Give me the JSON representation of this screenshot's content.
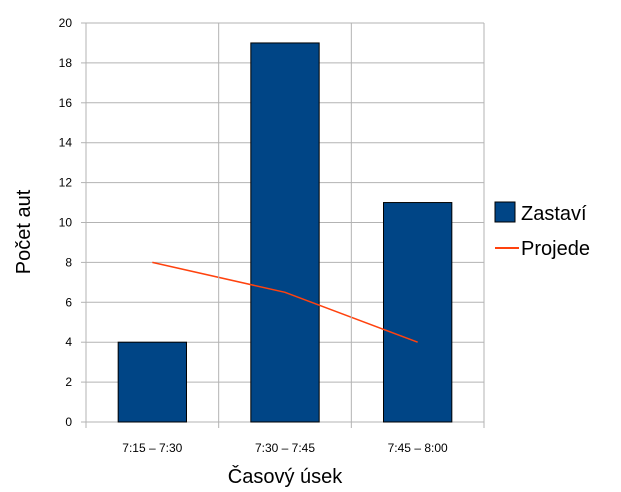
{
  "chart_data": {
    "type": "bar",
    "categories": [
      "7:15 – 7:30",
      "7:30 – 7:45",
      "7:45 – 8:00"
    ],
    "series": [
      {
        "name": "Zastaví",
        "type": "bar",
        "color": "#004586",
        "values": [
          4,
          19,
          11
        ]
      },
      {
        "name": "Projede",
        "type": "line",
        "color": "#ff420e",
        "values": [
          8,
          6.5,
          4
        ]
      }
    ],
    "xlabel": "Časový úsek",
    "ylabel": "Počet aut",
    "ylim": [
      0,
      20
    ],
    "yticks": [
      0,
      2,
      4,
      6,
      8,
      10,
      12,
      14,
      16,
      18,
      20
    ],
    "grid": true,
    "legend": "right"
  }
}
